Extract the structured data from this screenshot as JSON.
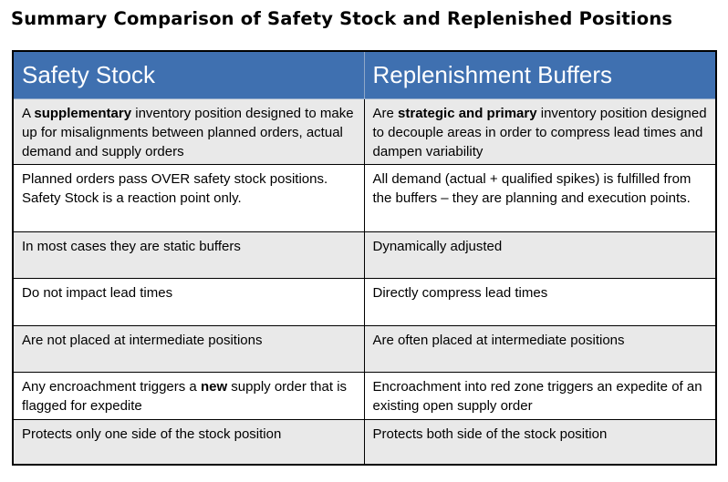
{
  "title": "Summary Comparison of Safety Stock and Replenished Positions",
  "headers": {
    "left": "Safety Stock",
    "right": "Replenishment Buffers"
  },
  "rows": [
    {
      "left": {
        "pre": "A ",
        "bold": "supplementary",
        "post": " inventory position designed to make up for misalignments between planned orders, actual demand and supply orders"
      },
      "right": {
        "pre": "Are ",
        "bold": "strategic and primary",
        "post": " inventory position designed to decouple areas in order to compress lead times and dampen variability"
      }
    },
    {
      "left": {
        "pre": "Planned orders pass OVER safety stock positions. Safety Stock is a reaction point only.",
        "bold": "",
        "post": ""
      },
      "right": {
        "pre": "All demand (actual + qualified spikes) is fulfilled from the buffers – they are planning and execution points.",
        "bold": "",
        "post": ""
      }
    },
    {
      "left": {
        "pre": "In most cases they are static buffers",
        "bold": "",
        "post": ""
      },
      "right": {
        "pre": "Dynamically adjusted",
        "bold": "",
        "post": ""
      }
    },
    {
      "left": {
        "pre": "Do not impact lead times",
        "bold": "",
        "post": ""
      },
      "right": {
        "pre": "Directly compress lead times",
        "bold": "",
        "post": ""
      }
    },
    {
      "left": {
        "pre": "Are not placed at intermediate positions",
        "bold": "",
        "post": ""
      },
      "right": {
        "pre": "Are often placed at intermediate positions",
        "bold": "",
        "post": ""
      }
    },
    {
      "left": {
        "pre": "Any encroachment triggers a ",
        "bold": "new",
        "post": " supply order that is flagged for expedite"
      },
      "right": {
        "pre": "Encroachment into red zone triggers an expedite of an existing open supply order",
        "bold": "",
        "post": ""
      }
    },
    {
      "left": {
        "pre": "Protects only one side of the stock position",
        "bold": "",
        "post": ""
      },
      "right": {
        "pre": "Protects both side of the stock position",
        "bold": "",
        "post": ""
      }
    }
  ]
}
